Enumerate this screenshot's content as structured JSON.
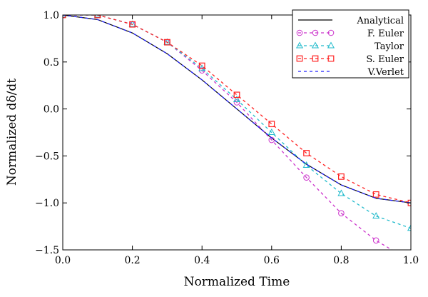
{
  "chart_data": {
    "type": "line",
    "title": "",
    "xlabel": "Normalized Time",
    "ylabel": "Normalized dδ/dt",
    "xlim": [
      0.0,
      1.0
    ],
    "ylim": [
      -1.5,
      1.0
    ],
    "xticks": [
      "0.0",
      "0.2",
      "0.4",
      "0.6",
      "0.8",
      "1.0"
    ],
    "yticks": [
      "1.0",
      "0.5",
      "0.0",
      "−0.5",
      "−1.0",
      "−1.5"
    ],
    "grid": false,
    "legend_position": "top-right",
    "x": [
      0.0,
      0.1,
      0.2,
      0.3,
      0.4,
      0.5,
      0.6,
      0.7,
      0.8,
      0.9,
      1.0
    ],
    "series": [
      {
        "name": "Analytical",
        "color": "#000000",
        "style": "solid",
        "marker": "none",
        "values": [
          1.0,
          0.951,
          0.809,
          0.588,
          0.309,
          0.0,
          -0.309,
          -0.588,
          -0.809,
          -0.951,
          -1.0
        ]
      },
      {
        "name": "F. Euler",
        "color": "#cc33cc",
        "style": "dashed",
        "marker": "circle",
        "values": [
          1.0,
          1.0,
          0.9,
          0.71,
          0.41,
          0.07,
          -0.33,
          -0.73,
          -1.11,
          -1.4,
          -1.62
        ]
      },
      {
        "name": "Taylor",
        "color": "#22bbcc",
        "style": "dashed",
        "marker": "triangle",
        "values": [
          1.0,
          1.0,
          0.9,
          0.71,
          0.43,
          0.1,
          -0.25,
          -0.6,
          -0.9,
          -1.14,
          -1.27
        ]
      },
      {
        "name": "S. Euler",
        "color": "#ff2222",
        "style": "dashed",
        "marker": "square",
        "values": [
          1.0,
          1.0,
          0.9,
          0.71,
          0.46,
          0.15,
          -0.16,
          -0.47,
          -0.72,
          -0.91,
          -1.0
        ]
      },
      {
        "name": "V.Verlet",
        "color": "#2222ff",
        "style": "dashed",
        "marker": "none",
        "values": [
          1.0,
          0.951,
          0.809,
          0.588,
          0.309,
          0.0,
          -0.309,
          -0.588,
          -0.809,
          -0.951,
          -1.0
        ]
      }
    ]
  }
}
